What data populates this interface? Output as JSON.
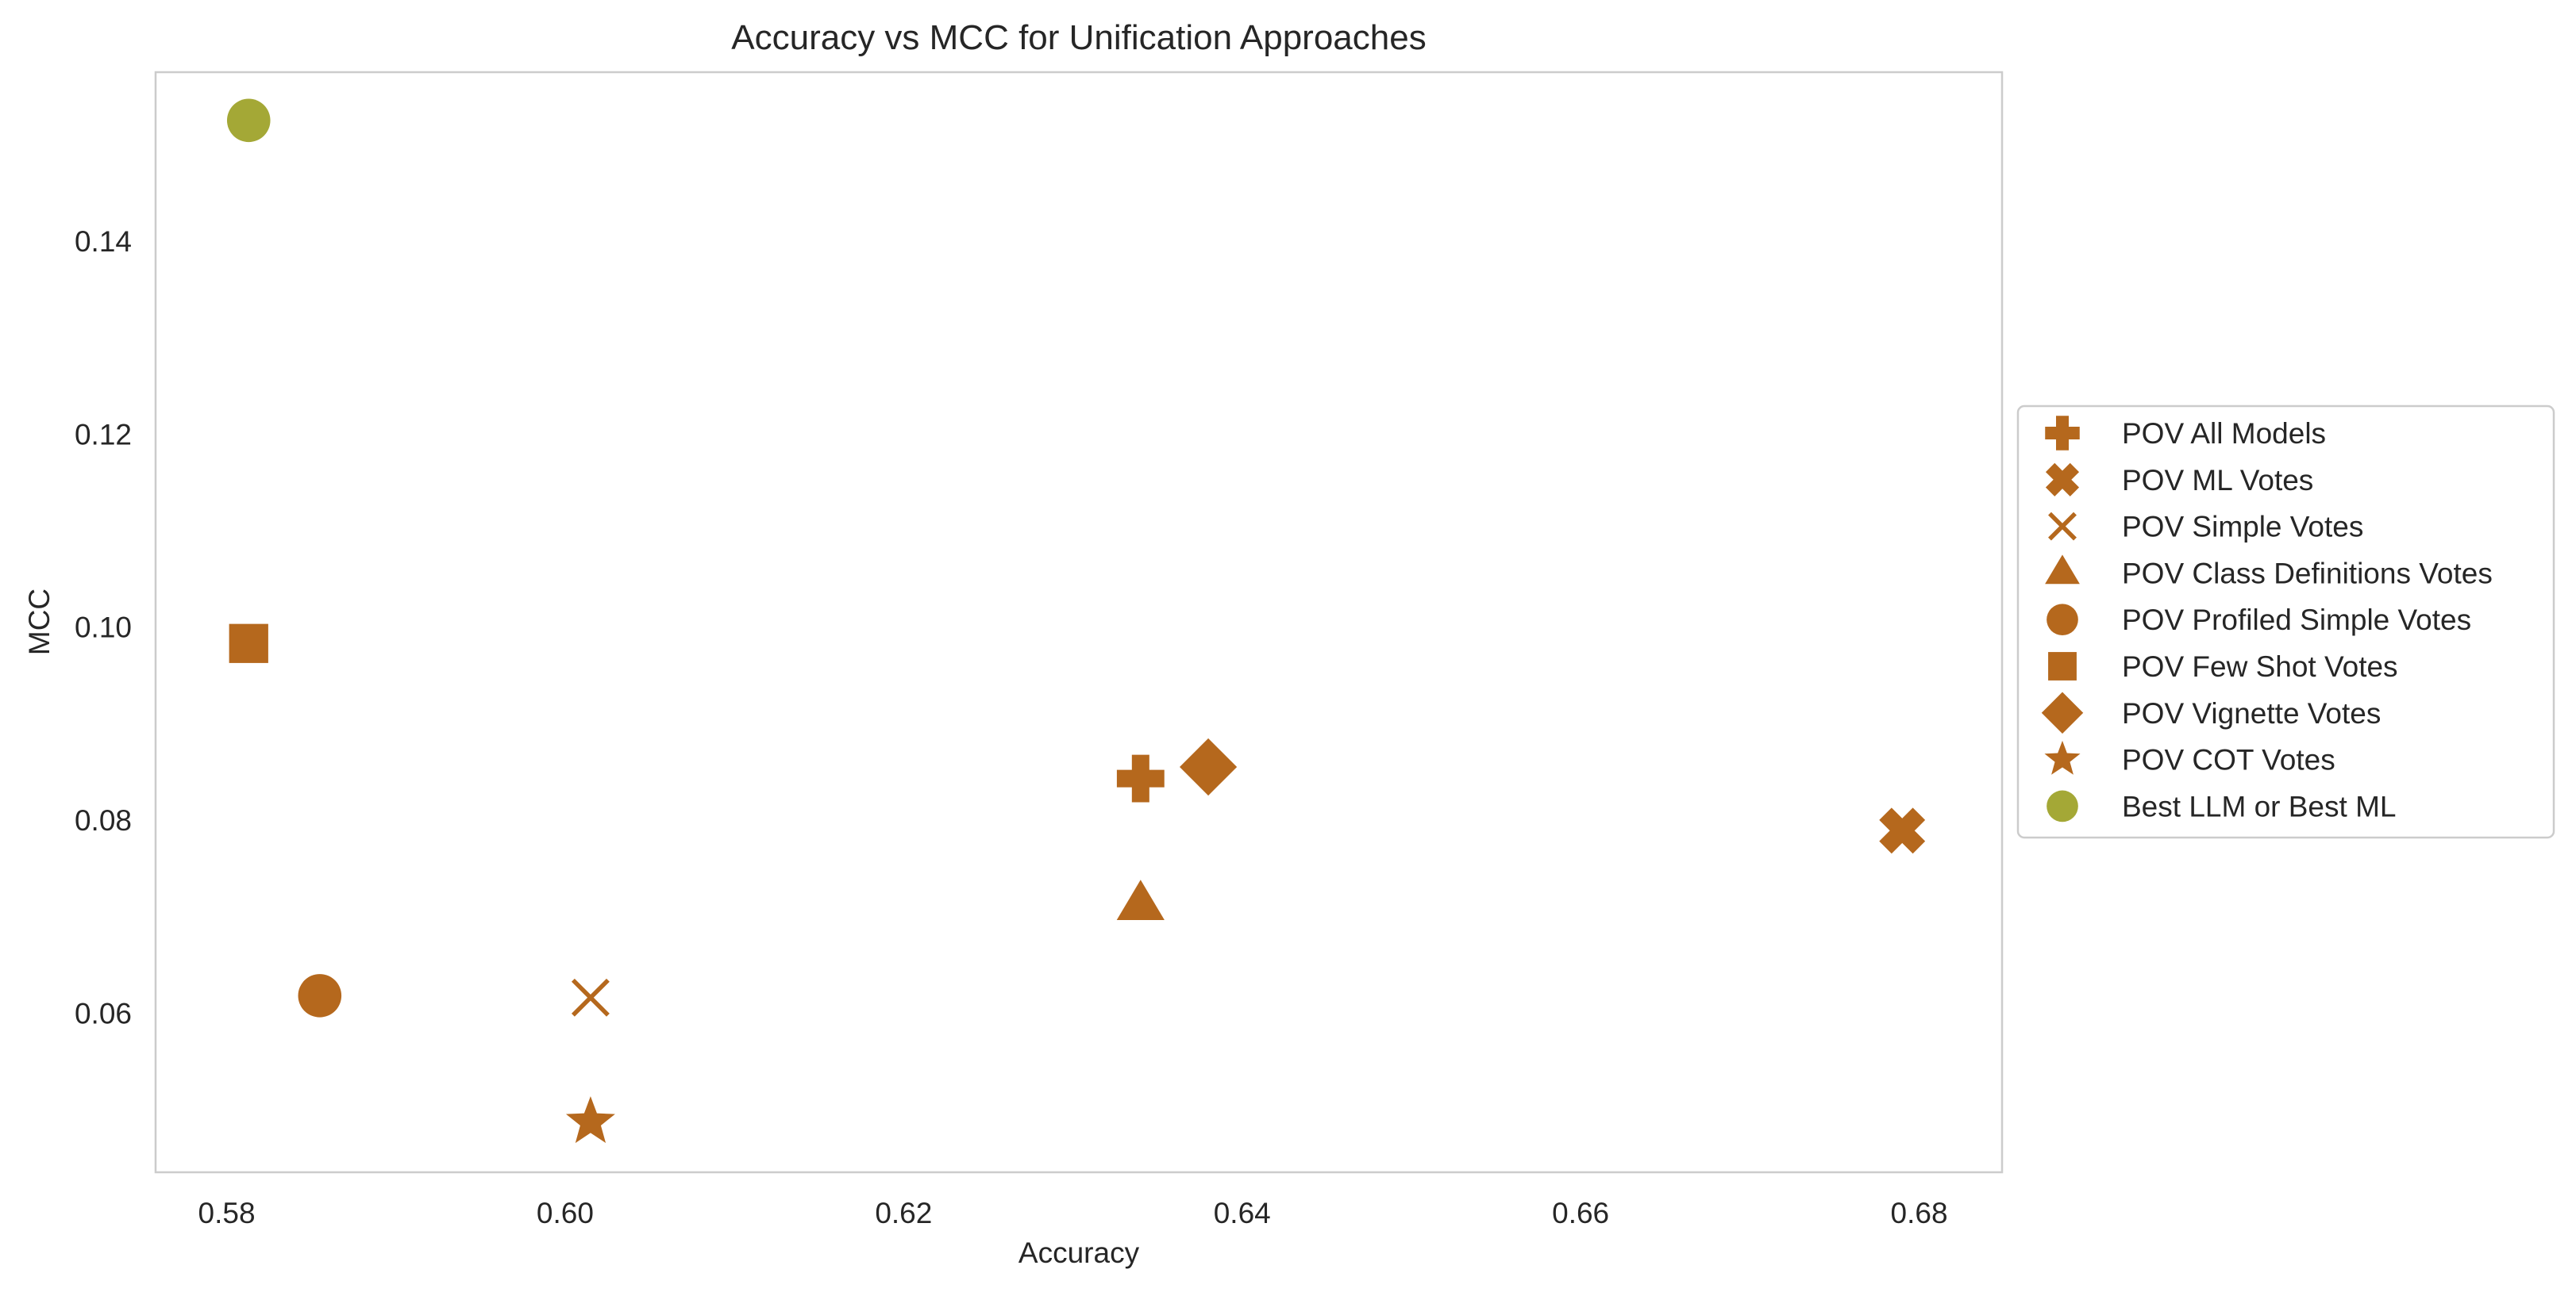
{
  "chart_data": {
    "type": "scatter",
    "title": "Accuracy vs MCC for Unification Approaches",
    "xlabel": "Accuracy",
    "ylabel": "MCC",
    "xlim": [
      0.5758,
      0.6849
    ],
    "ylim": [
      0.0435,
      0.1575
    ],
    "xticks": [
      0.58,
      0.6,
      0.62,
      0.64,
      0.66,
      0.68
    ],
    "xtick_labels": [
      "0.58",
      "0.60",
      "0.62",
      "0.64",
      "0.66",
      "0.68"
    ],
    "yticks": [
      0.06,
      0.08,
      0.1,
      0.12,
      0.14
    ],
    "ytick_labels": [
      "0.06",
      "0.08",
      "0.10",
      "0.12",
      "0.14"
    ],
    "grid": false,
    "legend_position": "center-right, outside plot area",
    "series": [
      {
        "name": "POV All Models",
        "marker": "plus-filled",
        "color": "#b5681d",
        "x": [
          0.634
        ],
        "y": [
          0.0843
        ]
      },
      {
        "name": "POV ML Votes",
        "marker": "x-filled",
        "color": "#b5681d",
        "x": [
          0.679
        ],
        "y": [
          0.0789
        ]
      },
      {
        "name": "POV Simple Votes",
        "marker": "x-thin",
        "color": "#b5681d",
        "x": [
          0.6015
        ],
        "y": [
          0.0616
        ]
      },
      {
        "name": "POV Class Definitions Votes",
        "marker": "triangle",
        "color": "#b5681d",
        "x": [
          0.634
        ],
        "y": [
          0.0712
        ]
      },
      {
        "name": "POV Profiled Simple Votes",
        "marker": "circle",
        "color": "#b5681d",
        "x": [
          0.5855
        ],
        "y": [
          0.0618
        ]
      },
      {
        "name": "POV Few Shot Votes",
        "marker": "square",
        "color": "#b5681d",
        "x": [
          0.5813
        ],
        "y": [
          0.0983
        ]
      },
      {
        "name": "POV Vignette Votes",
        "marker": "diamond",
        "color": "#b5681d",
        "x": [
          0.638
        ],
        "y": [
          0.0855
        ]
      },
      {
        "name": "POV COT Votes",
        "marker": "star",
        "color": "#b5681d",
        "x": [
          0.6015
        ],
        "y": [
          0.0487
        ]
      },
      {
        "name": "Best LLM or Best ML",
        "marker": "circle",
        "color": "#a4a836",
        "x": [
          0.5813
        ],
        "y": [
          0.1525
        ]
      }
    ]
  }
}
